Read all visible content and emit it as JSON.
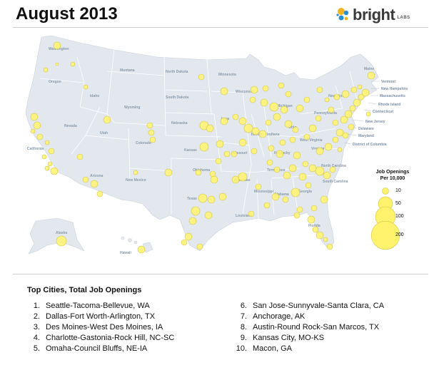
{
  "title": "August 2013",
  "logo": {
    "icon": "bright-dots-logo",
    "text": "bright",
    "sub": "LABS"
  },
  "states": [
    {
      "name": "Washington",
      "key": "wa"
    },
    {
      "name": "Oregon",
      "key": "or"
    },
    {
      "name": "Idaho",
      "key": "id"
    },
    {
      "name": "Montana",
      "key": "mt"
    },
    {
      "name": "North Dakota",
      "key": "nd"
    },
    {
      "name": "South Dakota",
      "key": "sd"
    },
    {
      "name": "Wyoming",
      "key": "wy"
    },
    {
      "name": "Nevada",
      "key": "nv"
    },
    {
      "name": "Utah",
      "key": "ut"
    },
    {
      "name": "Colorado",
      "key": "co"
    },
    {
      "name": "Nebraska",
      "key": "ne"
    },
    {
      "name": "Kansas",
      "key": "ks"
    },
    {
      "name": "California",
      "key": "ca"
    },
    {
      "name": "Arizona",
      "key": "az"
    },
    {
      "name": "New Mexico",
      "key": "nm"
    },
    {
      "name": "Texas",
      "key": "tx"
    },
    {
      "name": "Oklahoma",
      "key": "ok"
    },
    {
      "name": "Minnesota",
      "key": "mn"
    },
    {
      "name": "Iowa",
      "key": "ia"
    },
    {
      "name": "Missouri",
      "key": "mo"
    },
    {
      "name": "Arkansas",
      "key": "ar"
    },
    {
      "name": "Louisiana",
      "key": "la"
    },
    {
      "name": "Wisconsin",
      "key": "wi"
    },
    {
      "name": "Illinois",
      "key": "il"
    },
    {
      "name": "Michigan",
      "key": "mi"
    },
    {
      "name": "Indiana",
      "key": "in"
    },
    {
      "name": "Ohio",
      "key": "oh"
    },
    {
      "name": "Kentucky",
      "key": "ky"
    },
    {
      "name": "Tennessee",
      "key": "tn"
    },
    {
      "name": "Mississippi",
      "key": "ms"
    },
    {
      "name": "Alabama",
      "key": "al"
    },
    {
      "name": "Georgia",
      "key": "ga"
    },
    {
      "name": "Florida",
      "key": "fl"
    },
    {
      "name": "South Carolina",
      "key": "sc"
    },
    {
      "name": "North Carolina",
      "key": "nc"
    },
    {
      "name": "Virginia",
      "key": "va"
    },
    {
      "name": "West Virginia",
      "key": "wv"
    },
    {
      "name": "Pennsylvania",
      "key": "pa"
    },
    {
      "name": "New York",
      "key": "ny"
    },
    {
      "name": "Maine",
      "key": "me"
    },
    {
      "name": "Alaska",
      "key": "ak"
    },
    {
      "name": "Hawaii",
      "key": "hi"
    }
  ],
  "northeast_labels": [
    "Vermont",
    "New Hampshire",
    "Massachusetts",
    "Rhode Island",
    "Connecticut",
    "New Jersey",
    "Delaware",
    "Maryland",
    "District of Columbia"
  ],
  "legend": {
    "title_line1": "Job Openings",
    "title_line2": "Per 10,000",
    "entries": [
      {
        "label": "10",
        "value": 10
      },
      {
        "label": "50",
        "value": 50
      },
      {
        "label": "100",
        "value": 100
      },
      {
        "label": "200",
        "value": 200
      }
    ]
  },
  "bubble_color": "#fff36e",
  "bubble_stroke": "#d4c640",
  "land_color": "#e2e8ee",
  "border_color": "#ffffff",
  "top_cities": {
    "title": "Top Cities, Total Job Openings",
    "items": [
      {
        "rank": "1.",
        "name": "Seattle-Tacoma-Bellevue, WA"
      },
      {
        "rank": "2.",
        "name": "Dallas-Fort Worth-Arlington, TX"
      },
      {
        "rank": "3.",
        "name": "Des Moines-West Des Moines, IA"
      },
      {
        "rank": "4.",
        "name": "Charlotte-Gastonia-Rock Hill, NC-SC"
      },
      {
        "rank": "5.",
        "name": "Omaha-Council Bluffs, NE-IA"
      },
      {
        "rank": "6.",
        "name": "San Jose-Sunnyvale-Santa Clara, CA"
      },
      {
        "rank": "7.",
        "name": "Anchorage, AK"
      },
      {
        "rank": "8.",
        "name": "Austin-Round Rock-San Marcos, TX"
      },
      {
        "rank": "9.",
        "name": "Kansas City, MO-KS"
      },
      {
        "rank": "10.",
        "name": "Macon, GA"
      }
    ]
  }
}
